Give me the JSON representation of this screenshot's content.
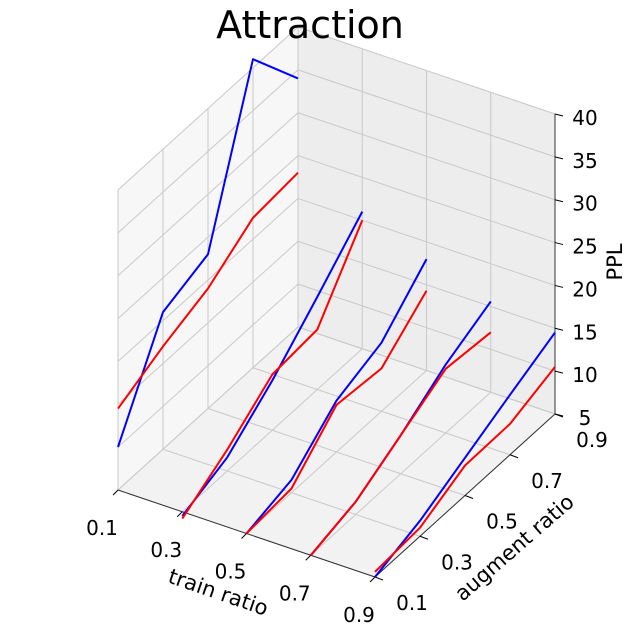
{
  "chart_data": {
    "type": "line",
    "projection": "3d",
    "title": "Attraction",
    "xlabel": "train ratio",
    "ylabel": "augment ratio",
    "zlabel": "PPL",
    "x_ticks": [
      "0.1",
      "0.3",
      "0.5",
      "0.7",
      "0.9"
    ],
    "y_ticks": [
      "0.1",
      "0.3",
      "0.5",
      "0.7",
      "0.9"
    ],
    "z_ticks": [
      "5",
      "10",
      "15",
      "20",
      "25",
      "30",
      "35",
      "40"
    ],
    "xlim": [
      0.1,
      0.9
    ],
    "ylim": [
      0.1,
      0.9
    ],
    "zlim": [
      5,
      40
    ],
    "grid": true,
    "x_values": [
      0.1,
      0.3,
      0.5,
      0.7,
      0.9
    ],
    "series": [
      {
        "color": "#0000ff",
        "train_ratio": 0.1,
        "points": [
          [
            0.1,
            10.0
          ],
          [
            0.3,
            21.0
          ],
          [
            0.5,
            23.0
          ],
          [
            0.7,
            41.0
          ],
          [
            0.9,
            34.0
          ]
        ]
      },
      {
        "color": "#ff0000",
        "train_ratio": 0.1,
        "points": [
          [
            0.1,
            14.5
          ],
          [
            0.3,
            17.0
          ],
          [
            0.5,
            19.0
          ],
          [
            0.7,
            22.5
          ],
          [
            0.9,
            23.0
          ]
        ]
      },
      {
        "color": "#0000ff",
        "train_ratio": 0.3,
        "points": [
          [
            0.1,
            4.5
          ],
          [
            0.3,
            6.6
          ],
          [
            0.5,
            10.8
          ],
          [
            0.7,
            15.8
          ],
          [
            0.9,
            21.0
          ]
        ]
      },
      {
        "color": "#ff0000",
        "train_ratio": 0.3,
        "points": [
          [
            0.1,
            4.2
          ],
          [
            0.3,
            7.5
          ],
          [
            0.5,
            11.5
          ],
          [
            0.7,
            12.0
          ],
          [
            0.9,
            20.0
          ]
        ]
      },
      {
        "color": "#0000ff",
        "train_ratio": 0.5,
        "points": [
          [
            0.1,
            5.0
          ],
          [
            0.3,
            6.5
          ],
          [
            0.5,
            11.0
          ],
          [
            0.7,
            13.0
          ],
          [
            0.9,
            18.0
          ]
        ]
      },
      {
        "color": "#ff0000",
        "train_ratio": 0.5,
        "points": [
          [
            0.1,
            5.0
          ],
          [
            0.3,
            5.5
          ],
          [
            0.5,
            10.5
          ],
          [
            0.7,
            10.0
          ],
          [
            0.9,
            14.3
          ]
        ]
      },
      {
        "color": "#0000ff",
        "train_ratio": 0.7,
        "points": [
          [
            0.1,
            5.0
          ],
          [
            0.3,
            6.5
          ],
          [
            0.5,
            9.5
          ],
          [
            0.7,
            13.0
          ],
          [
            0.9,
            15.6
          ]
        ]
      },
      {
        "color": "#ff0000",
        "train_ratio": 0.7,
        "points": [
          [
            0.1,
            5.0
          ],
          [
            0.3,
            6.5
          ],
          [
            0.5,
            9.5
          ],
          [
            0.7,
            12.5
          ],
          [
            0.9,
            12.0
          ]
        ]
      },
      {
        "color": "#0000ff",
        "train_ratio": 0.9,
        "points": [
          [
            0.1,
            5.0
          ],
          [
            0.3,
            6.8
          ],
          [
            0.5,
            9.4
          ],
          [
            0.7,
            12.0
          ],
          [
            0.9,
            14.5
          ]
        ]
      },
      {
        "color": "#ff0000",
        "train_ratio": 0.9,
        "points": [
          [
            0.1,
            5.6
          ],
          [
            0.3,
            6.0
          ],
          [
            0.5,
            8.5
          ],
          [
            0.7,
            8.6
          ],
          [
            0.9,
            10.5
          ]
        ]
      }
    ]
  }
}
